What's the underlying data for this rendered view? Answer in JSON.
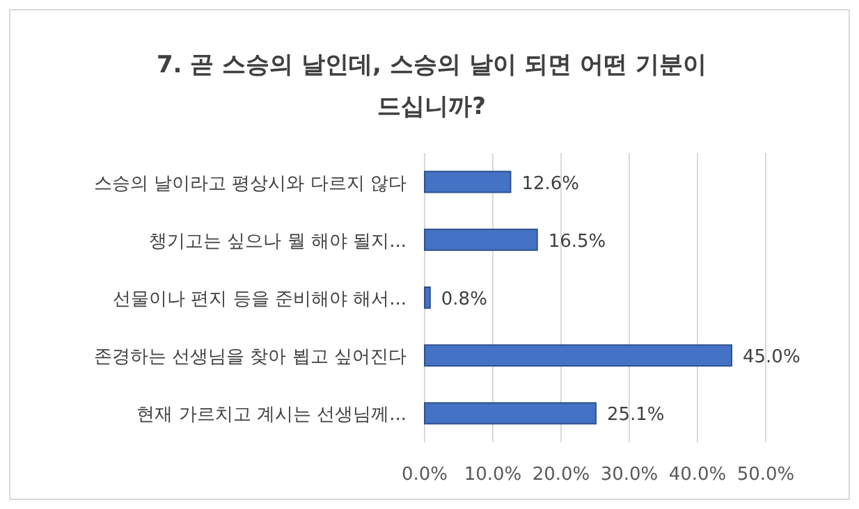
{
  "chart_data": {
    "type": "bar",
    "orientation": "horizontal",
    "title": "7. 곧 스승의 날인데, 스승의 날이 되면 어떤 기분이 드십니까?",
    "categories": [
      "스승의 날이라고 평상시와 다르지 않다",
      "챙기고는 싶으나 뭘 해야 될지...",
      "선물이나 편지 등을 준비해야 해서...",
      "존경하는 선생님을 찾아 뵙고 싶어진다",
      "현재 가르치고 계시는 선생님께..."
    ],
    "values": [
      12.6,
      16.5,
      0.8,
      45.0,
      25.1
    ],
    "value_labels": [
      "12.6%",
      "16.5%",
      "0.8%",
      "45.0%",
      "25.1%"
    ],
    "color": "#4472c4",
    "xlim": [
      0,
      50
    ],
    "xticks": [
      {
        "value": 0,
        "label": "0.0%"
      },
      {
        "value": 10,
        "label": "10.0%"
      },
      {
        "value": 20,
        "label": "20.0%"
      },
      {
        "value": 30,
        "label": "30.0%"
      },
      {
        "value": 40,
        "label": "40.0%"
      },
      {
        "value": 50,
        "label": "50.0%"
      }
    ],
    "grid": "x"
  }
}
